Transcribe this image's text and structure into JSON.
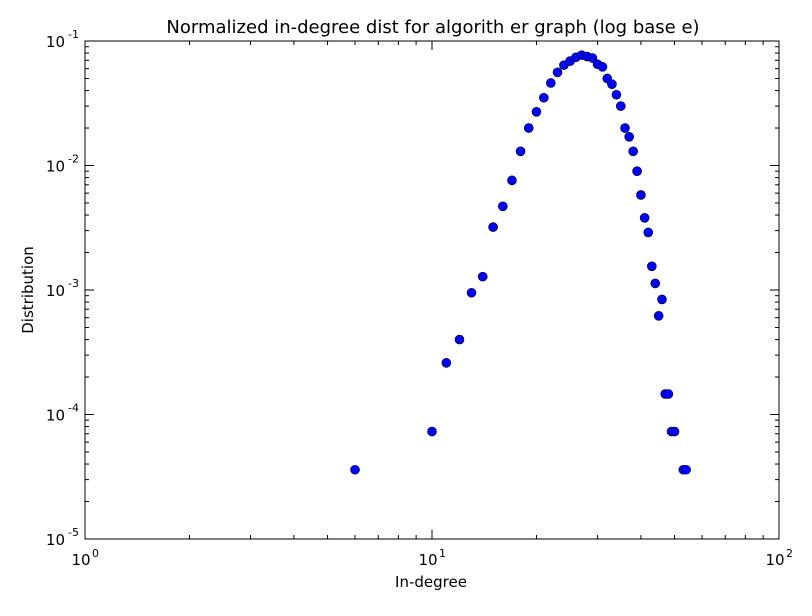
{
  "chart_data": {
    "type": "scatter",
    "title": "Normalized in-degree dist for algorith er graph (log base e)",
    "xlabel": "In-degree",
    "ylabel": "Distribution",
    "xscale": "log",
    "yscale": "log",
    "xlim": [
      1,
      100
    ],
    "ylim": [
      1e-05,
      0.1
    ],
    "grid": false,
    "marker_color": "#0000ff",
    "x_ticks": [
      {
        "base": "10",
        "exp": "0"
      },
      {
        "base": "10",
        "exp": "1"
      },
      {
        "base": "10",
        "exp": "2"
      }
    ],
    "y_ticks": [
      {
        "base": "10",
        "exp": "-5"
      },
      {
        "base": "10",
        "exp": "-4"
      },
      {
        "base": "10",
        "exp": "-3"
      },
      {
        "base": "10",
        "exp": "-2"
      },
      {
        "base": "10",
        "exp": "-1"
      }
    ],
    "series": [
      {
        "points": [
          [
            6,
            3.6e-05
          ],
          [
            10,
            7.3e-05
          ],
          [
            11,
            0.00026
          ],
          [
            12,
            0.0004
          ],
          [
            13,
            0.00095
          ],
          [
            14,
            0.00128
          ],
          [
            15,
            0.0032
          ],
          [
            16,
            0.0047
          ],
          [
            17,
            0.0076
          ],
          [
            18,
            0.013
          ],
          [
            19,
            0.02
          ],
          [
            20,
            0.027
          ],
          [
            21,
            0.035
          ],
          [
            22,
            0.046
          ],
          [
            23,
            0.056
          ],
          [
            24,
            0.064
          ],
          [
            25,
            0.069
          ],
          [
            26,
            0.074
          ],
          [
            27,
            0.077
          ],
          [
            28,
            0.075
          ],
          [
            29,
            0.073
          ],
          [
            30,
            0.065
          ],
          [
            31,
            0.062
          ],
          [
            32,
            0.05
          ],
          [
            33,
            0.045
          ],
          [
            34,
            0.037
          ],
          [
            35,
            0.03
          ],
          [
            36,
            0.02
          ],
          [
            37,
            0.017
          ],
          [
            38,
            0.013
          ],
          [
            39,
            0.009
          ],
          [
            40,
            0.0058
          ],
          [
            41,
            0.0038
          ],
          [
            42,
            0.0029
          ],
          [
            43,
            0.00155
          ],
          [
            44,
            0.00113
          ],
          [
            45,
            0.00062
          ],
          [
            46,
            0.00084
          ],
          [
            47,
            0.000146
          ],
          [
            48,
            0.000146
          ],
          [
            49,
            7.3e-05
          ],
          [
            50,
            7.3e-05
          ],
          [
            53,
            3.6e-05
          ],
          [
            54,
            3.6e-05
          ]
        ]
      }
    ]
  }
}
